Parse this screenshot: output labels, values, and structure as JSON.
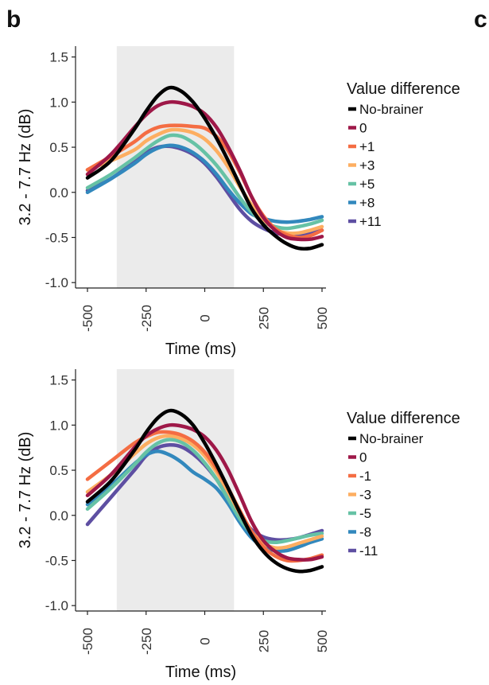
{
  "figure": {
    "panel_label": "b",
    "next_panel_label": "c"
  },
  "chart_data": [
    {
      "type": "line",
      "title": "",
      "xlabel": "Time (ms)",
      "ylabel": "3.2 - 7.7 Hz (dB)",
      "xlim": [
        -500,
        500
      ],
      "ylim": [
        -1.0,
        1.5
      ],
      "x_ticks": [
        "-500",
        "-250",
        "0",
        "250",
        "500"
      ],
      "y_ticks": [
        "-1.0",
        "-0.5",
        "0.0",
        "0.5",
        "1.0",
        "1.5"
      ],
      "grid": false,
      "shaded_region": {
        "x": [
          -375,
          125
        ],
        "color": "#ebebeb"
      },
      "legend": {
        "title": "Value difference",
        "placement": "right"
      },
      "x": [
        -500,
        -400,
        -300,
        -250,
        -200,
        -150,
        -100,
        -50,
        0,
        50,
        100,
        150,
        200,
        250,
        300,
        350,
        400,
        450,
        500
      ],
      "series": [
        {
          "name": "No-brainer",
          "color": "#000000",
          "values": [
            0.16,
            0.35,
            0.7,
            0.9,
            1.07,
            1.16,
            1.12,
            1.0,
            0.82,
            0.6,
            0.35,
            0.08,
            -0.18,
            -0.36,
            -0.48,
            -0.57,
            -0.62,
            -0.62,
            -0.58
          ]
        },
        {
          "name": "0",
          "color": "#9e1848",
          "values": [
            0.2,
            0.42,
            0.72,
            0.86,
            0.96,
            1.0,
            0.99,
            0.95,
            0.87,
            0.72,
            0.5,
            0.24,
            -0.05,
            -0.28,
            -0.42,
            -0.5,
            -0.52,
            -0.52,
            -0.49
          ]
        },
        {
          "name": "+1",
          "color": "#f46d43",
          "values": [
            0.25,
            0.4,
            0.56,
            0.66,
            0.72,
            0.74,
            0.74,
            0.73,
            0.71,
            0.62,
            0.46,
            0.22,
            -0.05,
            -0.26,
            -0.4,
            -0.47,
            -0.5,
            -0.48,
            -0.42
          ]
        },
        {
          "name": "+3",
          "color": "#fdae61",
          "values": [
            0.25,
            0.35,
            0.47,
            0.57,
            0.64,
            0.69,
            0.69,
            0.66,
            0.59,
            0.46,
            0.28,
            0.06,
            -0.14,
            -0.3,
            -0.41,
            -0.45,
            -0.45,
            -0.42,
            -0.38
          ]
        },
        {
          "name": "+5",
          "color": "#66c2a5",
          "values": [
            0.05,
            0.2,
            0.38,
            0.48,
            0.57,
            0.63,
            0.62,
            0.55,
            0.44,
            0.3,
            0.13,
            -0.06,
            -0.22,
            -0.33,
            -0.38,
            -0.4,
            -0.38,
            -0.35,
            -0.31
          ]
        },
        {
          "name": "+8",
          "color": "#3288bd",
          "values": [
            0.0,
            0.15,
            0.32,
            0.42,
            0.49,
            0.52,
            0.5,
            0.44,
            0.34,
            0.2,
            0.03,
            -0.12,
            -0.24,
            -0.29,
            -0.32,
            -0.33,
            -0.32,
            -0.3,
            -0.27
          ]
        },
        {
          "name": "+11",
          "color": "#5e4fa2",
          "values": [
            0.02,
            0.15,
            0.34,
            0.44,
            0.5,
            0.51,
            0.48,
            0.42,
            0.32,
            0.17,
            -0.01,
            -0.19,
            -0.32,
            -0.4,
            -0.45,
            -0.47,
            -0.47,
            -0.45,
            -0.42
          ]
        }
      ]
    },
    {
      "type": "line",
      "title": "",
      "xlabel": "Time (ms)",
      "ylabel": "3.2 - 7.7 Hz (dB)",
      "xlim": [
        -500,
        500
      ],
      "ylim": [
        -1.0,
        1.5
      ],
      "x_ticks": [
        "-500",
        "-250",
        "0",
        "250",
        "500"
      ],
      "y_ticks": [
        "-1.0",
        "-0.5",
        "0.0",
        "0.5",
        "1.0",
        "1.5"
      ],
      "grid": false,
      "shaded_region": {
        "x": [
          -375,
          125
        ],
        "color": "#ebebeb"
      },
      "legend": {
        "title": "Value difference",
        "placement": "right"
      },
      "x": [
        -500,
        -400,
        -300,
        -250,
        -200,
        -150,
        -100,
        -50,
        0,
        50,
        100,
        150,
        200,
        250,
        300,
        350,
        400,
        450,
        500
      ],
      "series": [
        {
          "name": "No-brainer",
          "color": "#000000",
          "values": [
            0.15,
            0.38,
            0.72,
            0.92,
            1.08,
            1.16,
            1.12,
            1.0,
            0.8,
            0.56,
            0.3,
            0.03,
            -0.22,
            -0.4,
            -0.52,
            -0.59,
            -0.62,
            -0.61,
            -0.57
          ]
        },
        {
          "name": "0",
          "color": "#9e1848",
          "values": [
            0.22,
            0.45,
            0.75,
            0.88,
            0.96,
            1.0,
            0.99,
            0.95,
            0.87,
            0.72,
            0.5,
            0.22,
            -0.07,
            -0.28,
            -0.4,
            -0.47,
            -0.49,
            -0.49,
            -0.46
          ]
        },
        {
          "name": "-1",
          "color": "#f46d43",
          "values": [
            0.4,
            0.6,
            0.8,
            0.87,
            0.92,
            0.92,
            0.89,
            0.82,
            0.7,
            0.52,
            0.3,
            0.05,
            -0.18,
            -0.35,
            -0.45,
            -0.5,
            -0.5,
            -0.48,
            -0.44
          ]
        },
        {
          "name": "-3",
          "color": "#fdae61",
          "values": [
            0.26,
            0.45,
            0.68,
            0.79,
            0.86,
            0.88,
            0.85,
            0.78,
            0.66,
            0.48,
            0.26,
            0.02,
            -0.18,
            -0.31,
            -0.36,
            -0.35,
            -0.31,
            -0.27,
            -0.23
          ]
        },
        {
          "name": "-5",
          "color": "#66c2a5",
          "values": [
            0.07,
            0.3,
            0.56,
            0.7,
            0.8,
            0.84,
            0.81,
            0.72,
            0.58,
            0.4,
            0.18,
            -0.04,
            -0.2,
            -0.28,
            -0.3,
            -0.28,
            -0.25,
            -0.22,
            -0.2
          ]
        },
        {
          "name": "-8",
          "color": "#3288bd",
          "values": [
            0.12,
            0.33,
            0.57,
            0.67,
            0.71,
            0.67,
            0.59,
            0.48,
            0.4,
            0.3,
            0.13,
            -0.08,
            -0.25,
            -0.35,
            -0.39,
            -0.39,
            -0.35,
            -0.3,
            -0.26
          ]
        },
        {
          "name": "-11",
          "color": "#5e4fa2",
          "values": [
            -0.1,
            0.2,
            0.5,
            0.66,
            0.75,
            0.78,
            0.76,
            0.68,
            0.56,
            0.4,
            0.2,
            0.0,
            -0.16,
            -0.24,
            -0.27,
            -0.27,
            -0.25,
            -0.21,
            -0.17
          ]
        }
      ]
    }
  ]
}
